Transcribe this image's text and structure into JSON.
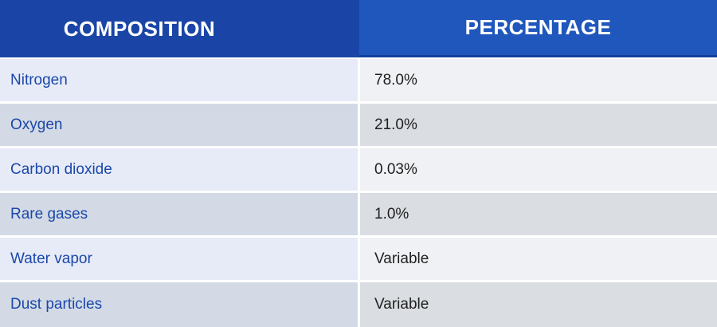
{
  "colors": {
    "header_left_bg": "#1A45A6",
    "header_right_bg": "#2057BD",
    "header_right_border": "#12419C",
    "header_text": "#FFFFFF",
    "row_odd_left_bg": "#E7EBF7",
    "row_even_left_bg": "#D3DAE6",
    "row_odd_right_bg": "#F0F1F4",
    "row_even_right_bg": "#DADDE2",
    "label_text": "#1B48A9",
    "value_text": "#1F1F1F"
  },
  "table": {
    "headers": {
      "composition": "COMPOSITION",
      "percentage": "PERCENTAGE"
    },
    "rows": [
      {
        "composition": "Nitrogen",
        "percentage": "78.0%"
      },
      {
        "composition": "Oxygen",
        "percentage": "21.0%"
      },
      {
        "composition": "Carbon dioxide",
        "percentage": "0.03%"
      },
      {
        "composition": "Rare gases",
        "percentage": "1.0%"
      },
      {
        "composition": "Water vapor",
        "percentage": "Variable"
      },
      {
        "composition": "Dust particles",
        "percentage": "Variable"
      }
    ]
  },
  "chart_data": {
    "type": "table",
    "title": "",
    "columns": [
      "COMPOSITION",
      "PERCENTAGE"
    ],
    "rows": [
      [
        "Nitrogen",
        "78.0%"
      ],
      [
        "Oxygen",
        "21.0%"
      ],
      [
        "Carbon dioxide",
        "0.03%"
      ],
      [
        "Rare gases",
        "1.0%"
      ],
      [
        "Water vapor",
        "Variable"
      ],
      [
        "Dust particles",
        "Variable"
      ]
    ]
  }
}
